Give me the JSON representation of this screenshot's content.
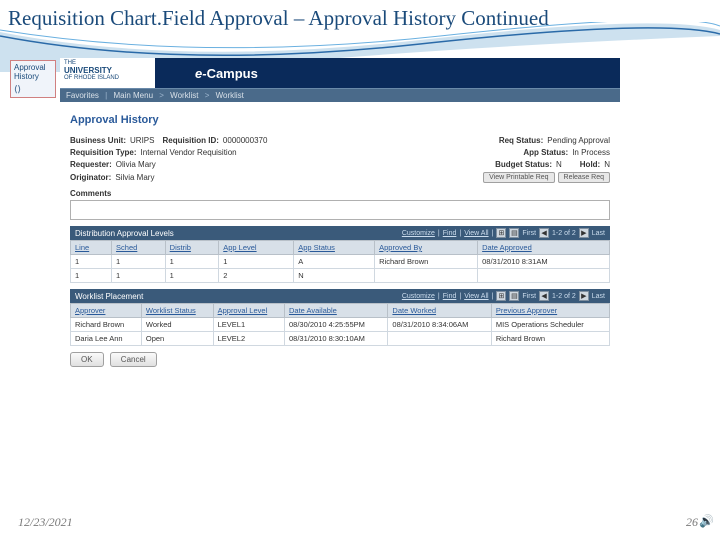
{
  "slide": {
    "title": "Requisition Chart.Field Approval – Approval History Continued",
    "footer_date": "12/23/2021",
    "footer_page": "26"
  },
  "tab": {
    "line1": "Approval",
    "line2": "History"
  },
  "header": {
    "the": "THE",
    "university": "UNIVERSITY",
    "of": "OF RHODE ISLAND",
    "ecampus_e": "e-",
    "ecampus_name": "Campus"
  },
  "breadcrumb": {
    "b1": "Favorites",
    "b2": "Main Menu",
    "b3": "Worklist",
    "b4": "Worklist"
  },
  "page": {
    "heading": "Approval History",
    "business_unit_lbl": "Business Unit:",
    "business_unit_val": "URIPS",
    "req_id_lbl": "Requisition ID:",
    "req_id_val": "0000000370",
    "req_status_lbl": "Req Status:",
    "req_status_val": "Pending Approval",
    "req_type_lbl": "Requisition Type:",
    "req_type_val": "Internal Vendor Requisition",
    "app_status_lbl": "App Status:",
    "app_status_val": "In Process",
    "requester_lbl": "Requester:",
    "requester_val": "Olivia Mary",
    "budget_status_lbl": "Budget Status:",
    "budget_status_val": "N",
    "hold_lbl": "Hold:",
    "hold_val": "N",
    "originator_lbl": "Originator:",
    "originator_val": "Silvia Mary",
    "btn_printable": "View Printable Req",
    "btn_release": "Release Req",
    "comments_lbl": "Comments"
  },
  "grid1": {
    "title": "Distribution Approval Levels",
    "toolbar": {
      "customize": "Customize",
      "find": "Find",
      "viewall": "View All",
      "first": "First",
      "range": "1-2 of 2",
      "last": "Last"
    },
    "cols": [
      "Line",
      "Sched",
      "Distrib",
      "App Level",
      "App Status",
      "Approved By",
      "Date Approved"
    ],
    "rows": [
      [
        "1",
        "1",
        "1",
        "1",
        "A",
        "Richard Brown",
        "08/31/2010  8:31AM"
      ],
      [
        "1",
        "1",
        "1",
        "2",
        "N",
        "",
        ""
      ]
    ]
  },
  "grid2": {
    "title": "Worklist Placement",
    "toolbar": {
      "customize": "Customize",
      "find": "Find",
      "viewall": "View All",
      "first": "First",
      "range": "1-2 of 2",
      "last": "Last"
    },
    "cols": [
      "Approver",
      "Worklist Status",
      "Approval Level",
      "Date Available",
      "Date Worked",
      "Previous Approver"
    ],
    "rows": [
      [
        "Richard Brown",
        "Worked",
        "LEVEL1",
        "08/30/2010 4:25:55PM",
        "08/31/2010 8:34:06AM",
        "MIS Operations Scheduler"
      ],
      [
        "Daria Lee Ann",
        "Open",
        "LEVEL2",
        "08/31/2010 8:30:10AM",
        "",
        "Richard Brown"
      ]
    ]
  },
  "buttons": {
    "ok": "OK",
    "cancel": "Cancel"
  }
}
